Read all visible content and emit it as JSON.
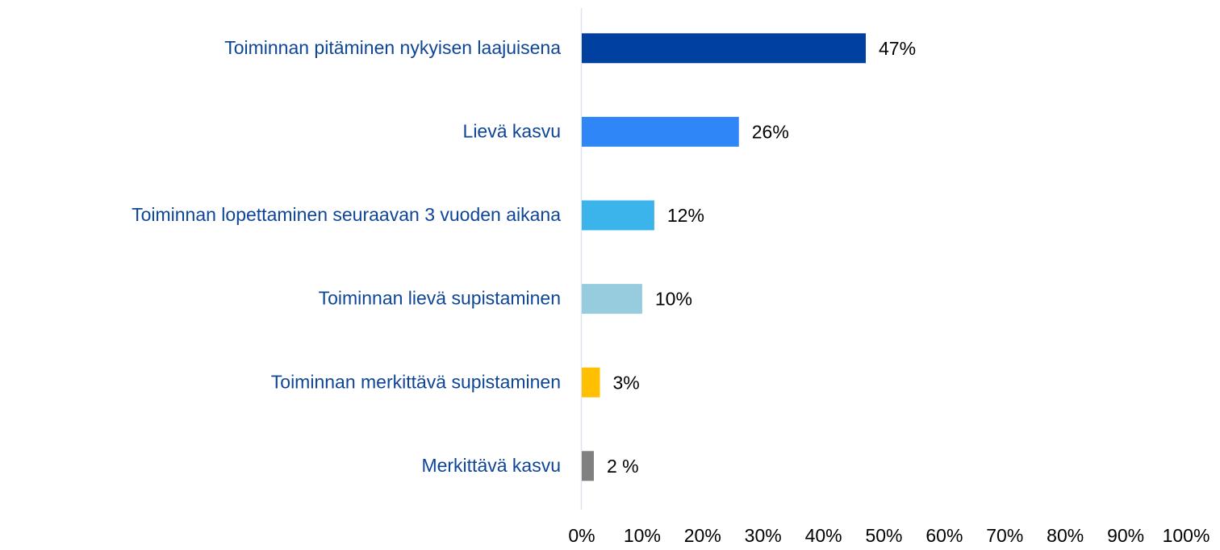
{
  "chart_data": {
    "type": "barh",
    "categories": [
      "Toiminnan pitäminen nykyisen laajuisena",
      "Lievä kasvu",
      "Toiminnan lopettaminen seuraavan 3 vuoden aikana",
      "Toiminnan lievä supistaminen",
      "Toiminnan merkittävä supistaminen",
      "Merkittävä kasvu"
    ],
    "values": [
      47,
      26,
      12,
      10,
      3,
      2
    ],
    "value_labels": [
      "47%",
      "26%",
      "12%",
      "10%",
      "3%",
      "2 %"
    ],
    "colors": [
      "#00409e",
      "#2f86f6",
      "#3bb3eb",
      "#96ccdd",
      "#ffc000",
      "#808080"
    ],
    "xlim": [
      0,
      100
    ],
    "xticks": [
      {
        "value": 0,
        "label": "0%"
      },
      {
        "value": 10,
        "label": "10%"
      },
      {
        "value": 20,
        "label": "20%"
      },
      {
        "value": 30,
        "label": "30%"
      },
      {
        "value": 40,
        "label": "40%"
      },
      {
        "value": 50,
        "label": "50%"
      },
      {
        "value": 60,
        "label": "60%"
      },
      {
        "value": 70,
        "label": "70%"
      },
      {
        "value": 80,
        "label": "80%"
      },
      {
        "value": 90,
        "label": "90%"
      },
      {
        "value": 100,
        "label": "100%"
      }
    ]
  }
}
